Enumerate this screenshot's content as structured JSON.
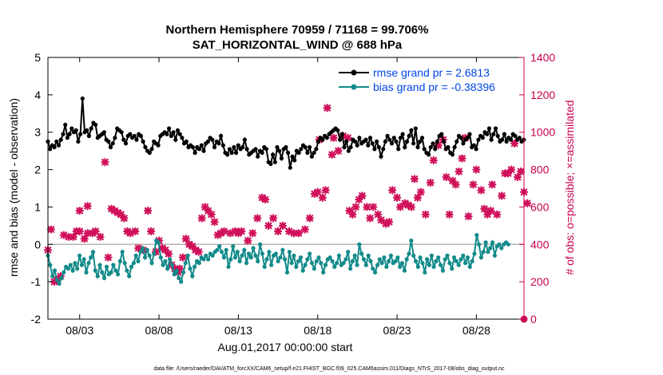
{
  "chart_data": {
    "type": "line",
    "title": "Northern Hemisphere 70959 / 71168 = 99.706%",
    "subtitle": "SAT_HORIZONTAL_WIND @ 688 hPa",
    "xlabel": "Aug.01,2017 00:00:00 start",
    "ylabel_left": "rmse and bias (model - observation)",
    "ylabel_right": "# of obs: o=possible; ×=assimilated",
    "footer": "data file: /Users/raeder/DAI/ATM_forcXX/CAM6_setup/f.e21.FHIST_BGC.f09_025.CAM6assim.011/Diags_NTrS_2017-08/obs_diag_output.nc",
    "x_ticks": [
      {
        "day": 3,
        "label": "08/03"
      },
      {
        "day": 8,
        "label": "08/08"
      },
      {
        "day": 13,
        "label": "08/13"
      },
      {
        "day": 18,
        "label": "08/18"
      },
      {
        "day": 23,
        "label": "08/23"
      },
      {
        "day": 28,
        "label": "08/28"
      }
    ],
    "xlim_days": [
      1.0,
      31.0
    ],
    "ylim_left": [
      -2,
      5
    ],
    "y_ticks_left": [
      "-2",
      "-1",
      "0",
      "1",
      "2",
      "3",
      "4",
      "5"
    ],
    "ylim_right": [
      0,
      1400
    ],
    "y_ticks_right": [
      "0",
      "200",
      "400",
      "600",
      "800",
      "1000",
      "1200",
      "1400"
    ],
    "grid": false,
    "zero_line": 0,
    "legend_position": "top-right",
    "colors": {
      "rmse": "#000000",
      "bias": "#128a8a",
      "counts": "#d0105a",
      "right_axis": "#c8004f",
      "legend_text": "#0046e6",
      "zero_line": "#b5b5b5"
    },
    "series": [
      {
        "name": "rmse grand pr = 2.6813",
        "axis": "left",
        "values": [
          2.75,
          2.55,
          2.65,
          2.6,
          2.75,
          2.65,
          2.8,
          2.95,
          3.2,
          2.85,
          2.95,
          3.1,
          3.0,
          3.05,
          2.75,
          2.95,
          3.9,
          3.0,
          3.05,
          2.9,
          3.1,
          3.25,
          3.2,
          2.85,
          2.9,
          2.95,
          3.0,
          2.8,
          2.75,
          2.6,
          2.7,
          2.85,
          3.1,
          3.05,
          3.0,
          2.8,
          2.7,
          2.9,
          2.95,
          2.85,
          2.9,
          2.8,
          2.95,
          2.9,
          2.75,
          2.6,
          2.5,
          2.45,
          2.55,
          2.75,
          2.7,
          2.65,
          2.9,
          2.95,
          3.0,
          2.95,
          3.1,
          2.9,
          3.0,
          2.8,
          3.05,
          2.95,
          2.85,
          2.7,
          2.75,
          2.6,
          2.65,
          2.6,
          2.45,
          2.6,
          2.55,
          2.65,
          2.5,
          2.7,
          2.75,
          2.85,
          2.8,
          2.6,
          2.75,
          2.7,
          2.9,
          2.65,
          2.45,
          2.4,
          2.55,
          2.45,
          2.6,
          2.45,
          2.65,
          2.55,
          2.6,
          2.8,
          2.55,
          2.4,
          2.45,
          2.5,
          2.55,
          2.35,
          2.5,
          2.45,
          2.6,
          2.55,
          2.2,
          2.15,
          2.4,
          2.2,
          2.6,
          2.5,
          2.3,
          2.55,
          2.6,
          2.45,
          2.05,
          2.35,
          2.25,
          2.5,
          2.45,
          2.55,
          2.65,
          2.6,
          2.45,
          2.6,
          2.35,
          2.45,
          2.55,
          2.75,
          2.85,
          2.8,
          2.9,
          2.85,
          2.95,
          3.0,
          3.05,
          3.1,
          3.05,
          2.8,
          2.95,
          2.6,
          2.75,
          2.5,
          2.6,
          2.8,
          2.75,
          2.65,
          2.85,
          2.7,
          2.75,
          2.8,
          2.65,
          2.85,
          2.7,
          2.55,
          2.75,
          2.6,
          2.35,
          2.55,
          2.75,
          2.9,
          2.8,
          2.7,
          2.85,
          2.75,
          2.55,
          2.85,
          2.95,
          2.6,
          2.75,
          2.9,
          3.05,
          2.7,
          3.1,
          2.6,
          2.75,
          2.85,
          2.55,
          2.45,
          2.4,
          2.6,
          2.7,
          2.55,
          2.75,
          2.9,
          2.95,
          2.75,
          2.55,
          2.6,
          2.45,
          2.4,
          2.6,
          2.75,
          2.9,
          2.85,
          2.7,
          2.8,
          2.85,
          2.95,
          2.6,
          2.65,
          2.55,
          2.8,
          2.9,
          2.85,
          3.0,
          2.95,
          3.1,
          2.8,
          2.95,
          3.1,
          2.9,
          2.75,
          2.8,
          2.95,
          2.75,
          2.85,
          2.8,
          2.95,
          2.9,
          2.8,
          2.85,
          2.75,
          2.8
        ],
        "x_start_day": 1.0,
        "x_step_day": 0.1363
      },
      {
        "name": "bias grand pr = -0.38396",
        "axis": "left",
        "values": [
          -0.3,
          -0.55,
          -0.85,
          -0.7,
          -0.95,
          -1.05,
          -0.9,
          -0.75,
          -0.6,
          -0.65,
          -0.55,
          -0.7,
          -0.5,
          -0.65,
          -0.3,
          -0.55,
          -0.4,
          -0.75,
          -0.5,
          -0.35,
          -0.2,
          -0.7,
          -0.85,
          -0.55,
          -0.75,
          -0.9,
          -0.6,
          -0.8,
          -0.75,
          -0.55,
          -0.7,
          -0.8,
          -0.45,
          -0.2,
          -0.5,
          -0.7,
          -0.85,
          -0.6,
          -0.5,
          -0.3,
          -0.45,
          -0.2,
          -0.1,
          -0.35,
          -0.15,
          -0.3,
          -0.5,
          -0.25,
          0.1,
          0.05,
          -0.35,
          -0.55,
          -0.45,
          -0.65,
          -0.4,
          -0.55,
          -0.8,
          -0.7,
          -0.9,
          -1.0,
          -0.75,
          -0.5,
          -0.3,
          -0.65,
          -0.85,
          -0.6,
          -0.45,
          -0.5,
          -0.35,
          -0.4,
          -0.3,
          -0.4,
          -0.25,
          -0.3,
          -0.2,
          -0.15,
          -0.05,
          -0.2,
          -0.35,
          -0.15,
          -0.6,
          -0.4,
          -0.05,
          -0.35,
          -0.2,
          -0.45,
          -0.3,
          -0.15,
          -0.5,
          -0.25,
          -0.35,
          -0.1,
          -0.3,
          -0.45,
          0.0,
          -0.25,
          -0.6,
          -0.4,
          -0.2,
          -0.55,
          -0.3,
          -0.25,
          -0.45,
          -0.35,
          -0.15,
          -0.4,
          -0.75,
          -0.2,
          -0.5,
          -0.3,
          -0.6,
          -0.45,
          -0.35,
          -0.7,
          -0.55,
          -0.4,
          -0.25,
          -0.5,
          -0.65,
          -0.45,
          -0.35,
          -0.5,
          -0.75,
          -0.55,
          -0.4,
          -0.35,
          -0.45,
          -0.6,
          -0.5,
          -0.3,
          -0.55,
          -0.5,
          -0.4,
          -0.2,
          -0.65,
          -0.45,
          -0.3,
          -0.55,
          0.0,
          -0.25,
          -0.4,
          -0.55,
          -0.3,
          -0.45,
          -0.65,
          -0.75,
          -0.55,
          -0.4,
          -0.5,
          -0.35,
          -0.6,
          -0.45,
          -0.3,
          -0.5,
          -0.45,
          -0.35,
          -0.6,
          -0.5,
          -0.7,
          -0.4,
          -0.25,
          0.1,
          -0.3,
          -0.45,
          -0.6,
          -0.35,
          -0.5,
          -0.75,
          -0.4,
          -0.55,
          -0.3,
          -0.6,
          -0.45,
          -0.35,
          -0.55,
          -0.7,
          -0.4,
          -0.3,
          -0.5,
          -0.65,
          -0.35,
          -0.45,
          -0.55,
          -0.4,
          -0.3,
          -0.5,
          -0.35,
          -0.6,
          -0.45,
          -0.25,
          0.25,
          0.0,
          -0.35,
          -0.2,
          0.05,
          -0.2,
          -0.1,
          0.05,
          -0.3,
          -0.05,
          0.0,
          -0.1,
          0.0,
          0.05,
          0.0
        ],
        "x_start_day": 1.0,
        "x_step_day": 0.1422
      },
      {
        "name": "obs assimilated",
        "axis": "right",
        "marker": "x",
        "points": [
          [
            1.0,
            370
          ],
          [
            1.2,
            480
          ],
          [
            1.4,
            200
          ],
          [
            1.6,
            210
          ],
          [
            1.8,
            230
          ],
          [
            2.0,
            450
          ],
          [
            2.3,
            440
          ],
          [
            2.6,
            440
          ],
          [
            2.8,
            470
          ],
          [
            3.0,
            470
          ],
          [
            3.3,
            430
          ],
          [
            3.5,
            460
          ],
          [
            3.8,
            460
          ],
          [
            4.0,
            470
          ],
          [
            4.3,
            440
          ],
          [
            4.8,
            330
          ],
          [
            3.5,
            605
          ],
          [
            3.0,
            580
          ],
          [
            4.6,
            840
          ],
          [
            5.0,
            590
          ],
          [
            5.2,
            580
          ],
          [
            5.4,
            570
          ],
          [
            5.6,
            560
          ],
          [
            5.8,
            540
          ],
          [
            6.0,
            470
          ],
          [
            6.2,
            460
          ],
          [
            6.5,
            470
          ],
          [
            6.7,
            380
          ],
          [
            7.0,
            370
          ],
          [
            7.3,
            580
          ],
          [
            7.5,
            470
          ],
          [
            7.8,
            360
          ],
          [
            8.0,
            420
          ],
          [
            8.2,
            380
          ],
          [
            8.4,
            370
          ],
          [
            8.6,
            350
          ],
          [
            8.8,
            290
          ],
          [
            9.0,
            270
          ],
          [
            9.2,
            250
          ],
          [
            9.3,
            270
          ],
          [
            9.5,
            330
          ],
          [
            9.7,
            430
          ],
          [
            9.9,
            400
          ],
          [
            10.1,
            390
          ],
          [
            10.3,
            370
          ],
          [
            10.5,
            360
          ],
          [
            10.7,
            540
          ],
          [
            10.9,
            600
          ],
          [
            11.1,
            580
          ],
          [
            11.3,
            560
          ],
          [
            11.5,
            520
          ],
          [
            11.7,
            450
          ],
          [
            11.9,
            460
          ],
          [
            12.1,
            470
          ],
          [
            12.5,
            460
          ],
          [
            12.8,
            470
          ],
          [
            13.0,
            460
          ],
          [
            13.2,
            470
          ],
          [
            13.6,
            420
          ],
          [
            13.9,
            460
          ],
          [
            14.2,
            540
          ],
          [
            14.5,
            650
          ],
          [
            14.7,
            640
          ],
          [
            14.9,
            500
          ],
          [
            15.2,
            540
          ],
          [
            15.5,
            470
          ],
          [
            15.8,
            500
          ],
          [
            16.2,
            470
          ],
          [
            16.5,
            460
          ],
          [
            16.8,
            460
          ],
          [
            17.2,
            480
          ],
          [
            17.5,
            540
          ],
          [
            17.8,
            670
          ],
          [
            18.0,
            680
          ],
          [
            18.3,
            650
          ],
          [
            18.5,
            690
          ],
          [
            18.9,
            880
          ],
          [
            19.3,
            900
          ],
          [
            19.6,
            980
          ],
          [
            19.9,
            970
          ],
          [
            18.1,
            960
          ],
          [
            18.6,
            1130
          ],
          [
            19.0,
            970
          ],
          [
            20.0,
            580
          ],
          [
            20.2,
            560
          ],
          [
            20.4,
            600
          ],
          [
            20.6,
            640
          ],
          [
            20.8,
            660
          ],
          [
            21.1,
            600
          ],
          [
            21.3,
            540
          ],
          [
            21.5,
            600
          ],
          [
            21.8,
            560
          ],
          [
            22.0,
            530
          ],
          [
            22.3,
            510
          ],
          [
            22.5,
            520
          ],
          [
            22.7,
            690
          ],
          [
            23.0,
            650
          ],
          [
            23.2,
            600
          ],
          [
            23.5,
            620
          ],
          [
            23.7,
            610
          ],
          [
            23.9,
            600
          ],
          [
            24.1,
            750
          ],
          [
            24.3,
            650
          ],
          [
            24.5,
            680
          ],
          [
            24.8,
            560
          ],
          [
            25.1,
            730
          ],
          [
            25.3,
            850
          ],
          [
            25.6,
            930
          ],
          [
            25.9,
            960
          ],
          [
            26.1,
            760
          ],
          [
            26.3,
            560
          ],
          [
            26.5,
            740
          ],
          [
            26.7,
            720
          ],
          [
            26.9,
            790
          ],
          [
            27.1,
            860
          ],
          [
            27.3,
            970
          ],
          [
            27.5,
            550
          ],
          [
            27.8,
            720
          ],
          [
            28.0,
            800
          ],
          [
            28.3,
            690
          ],
          [
            28.5,
            590
          ],
          [
            28.7,
            560
          ],
          [
            28.9,
            580
          ],
          [
            29.0,
            720
          ],
          [
            29.3,
            560
          ],
          [
            29.6,
            660
          ],
          [
            29.8,
            780
          ],
          [
            30.0,
            780
          ],
          [
            30.2,
            800
          ],
          [
            30.4,
            940
          ],
          [
            30.6,
            760
          ],
          [
            30.8,
            790
          ],
          [
            31.0,
            680
          ],
          [
            31.2,
            620
          ]
        ]
      },
      {
        "name": "obs possible",
        "axis": "right",
        "marker": "o",
        "points": [
          [
            31.0,
            0
          ]
        ]
      }
    ]
  }
}
